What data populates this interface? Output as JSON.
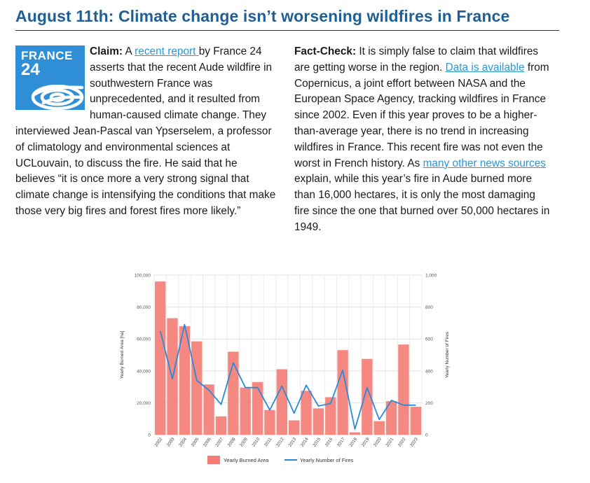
{
  "header": {
    "title": "August 11th: Climate change isn’t worsening wildfires in France"
  },
  "logo": {
    "line1": "FRANCE",
    "line2": "24"
  },
  "claim": {
    "label": "Claim:",
    "pre_link": " A ",
    "link": "recent report ",
    "post_link": "by France 24 asserts that the recent Aude wildfire in southwestern France was unprecedented, and it resulted from human-caused climate change. They interviewed Jean-Pascal van Ypserselem, a professor of climatology and environmental sciences at UCLouvain, to discuss the fire. He said that he believes “it is once more a very strong signal that climate change is intensifying the conditions that make those very big fires and forest fires more likely.”"
  },
  "factcheck": {
    "label": "Fact-Check:",
    "text1": " It is simply false to claim that wildfires are getting worse in the region. ",
    "link1": "Data is available",
    "text2": " from Copernicus, a joint effort between NASA and the European Space Agency, tracking wildfires in France since 2002. Even if this year proves to be a higher-than-average year, there is no trend in increasing wildfires in France. This recent fire was not even the worst in French history. As ",
    "link2": "many other news sources",
    "text3": " explain, while this year’s fire in Aude burned more than 16,000 hectares, it is only the most damaging fire since the one that burned over 50,000 hectares in 1949."
  },
  "chart_data": {
    "type": "bar+line",
    "categories": [
      "2002",
      "2003",
      "2004",
      "2005",
      "2006",
      "2007",
      "2008",
      "2009",
      "2010",
      "2011",
      "2012",
      "2013",
      "2014",
      "2015",
      "2016",
      "2017",
      "2018",
      "2019",
      "2020",
      "2021",
      "2022",
      "2023"
    ],
    "series": [
      {
        "name": "Yearly Burned Area",
        "type": "bar",
        "axis": "left",
        "color": "#f47c74",
        "values": [
          96000,
          73000,
          68000,
          58500,
          31500,
          11500,
          52000,
          29500,
          33000,
          15500,
          41000,
          9000,
          27500,
          16500,
          23500,
          53000,
          1500,
          47500,
          8500,
          21000,
          56500,
          17500
        ]
      },
      {
        "name": "Yearly Number of Fires",
        "type": "line",
        "axis": "right",
        "color": "#2b8ad8",
        "values": [
          650,
          350,
          690,
          340,
          280,
          190,
          450,
          295,
          295,
          155,
          305,
          135,
          310,
          180,
          195,
          405,
          35,
          295,
          95,
          215,
          185,
          185
        ]
      }
    ],
    "ylabel_left": "Yearly Burned Area [ha]",
    "ylabel_right": "Yearly Number of Fires",
    "ylim_left": [
      0,
      100000
    ],
    "ylim_right": [
      0,
      1000
    ],
    "yticks_left": [
      "0",
      "20,000",
      "40,000",
      "60,000",
      "80,000",
      "100,000"
    ],
    "yticks_right": [
      "0",
      "200",
      "400",
      "600",
      "800",
      "1,000"
    ],
    "grid": true,
    "legend": "bottom-center"
  }
}
